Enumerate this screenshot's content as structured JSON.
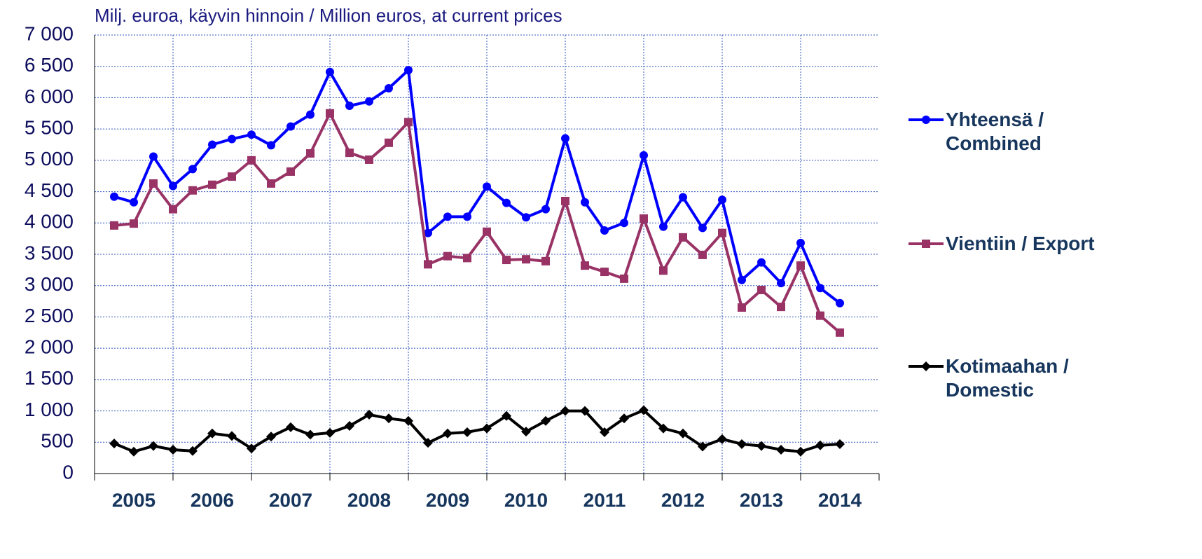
{
  "chart_data": {
    "type": "line",
    "title": "Milj. euroa, käyvin hinnoin / Million euros, at current prices",
    "categories": [
      "2005",
      null,
      null,
      null,
      "2006",
      null,
      null,
      null,
      "2007",
      null,
      null,
      null,
      "2008",
      null,
      null,
      null,
      "2009",
      null,
      null,
      null,
      "2010",
      null,
      null,
      null,
      "2011",
      null,
      null,
      null,
      "2012",
      null,
      null,
      null,
      "2013",
      null,
      null,
      null,
      "2014",
      null,
      null,
      null
    ],
    "series": [
      {
        "name": "Yhteensä / Combined",
        "color": "#0000ff",
        "marker": "circle",
        "values": [
          4420,
          4330,
          5060,
          4590,
          4860,
          5250,
          5340,
          5410,
          5240,
          5540,
          5730,
          6410,
          5870,
          5940,
          6150,
          6440,
          3840,
          4100,
          4100,
          4580,
          4320,
          4090,
          4220,
          5350,
          4330,
          3880,
          4000,
          5080,
          3940,
          4410,
          3920,
          4370,
          3090,
          3370,
          3040,
          3680,
          2960,
          2720,
          null,
          null
        ]
      },
      {
        "name": "Vientiin / Export",
        "color": "#993366",
        "marker": "square",
        "values": [
          3960,
          3990,
          4630,
          4220,
          4520,
          4610,
          4740,
          5000,
          4630,
          4820,
          5110,
          5750,
          5120,
          5010,
          5280,
          5610,
          3340,
          3470,
          3440,
          3860,
          3410,
          3420,
          3390,
          4350,
          3320,
          3220,
          3110,
          4070,
          3240,
          3770,
          3490,
          3840,
          2650,
          2930,
          2660,
          3320,
          2520,
          2250,
          null,
          null
        ]
      },
      {
        "name": "Kotimaahan / Domestic",
        "color": "#000000",
        "marker": "diamond",
        "values": [
          480,
          350,
          440,
          380,
          360,
          640,
          600,
          400,
          590,
          740,
          620,
          650,
          760,
          940,
          880,
          840,
          490,
          640,
          660,
          720,
          920,
          670,
          840,
          1000,
          1000,
          660,
          880,
          1010,
          720,
          640,
          430,
          550,
          470,
          440,
          380,
          350,
          450,
          470,
          null,
          null
        ]
      }
    ],
    "ylim": [
      0,
      7000
    ],
    "yticks": [
      0,
      500,
      {
        "value": 1000,
        "label": "1 000"
      },
      {
        "value": 1500,
        "label": "1 500"
      },
      {
        "value": 2000,
        "label": "2 000"
      },
      {
        "value": 2500,
        "label": "2 500"
      },
      {
        "value": 3000,
        "label": "3 000"
      },
      {
        "value": 3500,
        "label": "3 500"
      },
      {
        "value": 4000,
        "label": "4 000"
      },
      {
        "value": 4500,
        "label": "4 500"
      },
      {
        "value": 5000,
        "label": "5 000"
      },
      {
        "value": 5500,
        "label": "5 500"
      },
      {
        "value": 6000,
        "label": "6 000"
      },
      {
        "value": 6500,
        "label": "6 500"
      },
      {
        "value": 7000,
        "label": "7 000"
      }
    ],
    "grid": true,
    "legend": "right"
  }
}
